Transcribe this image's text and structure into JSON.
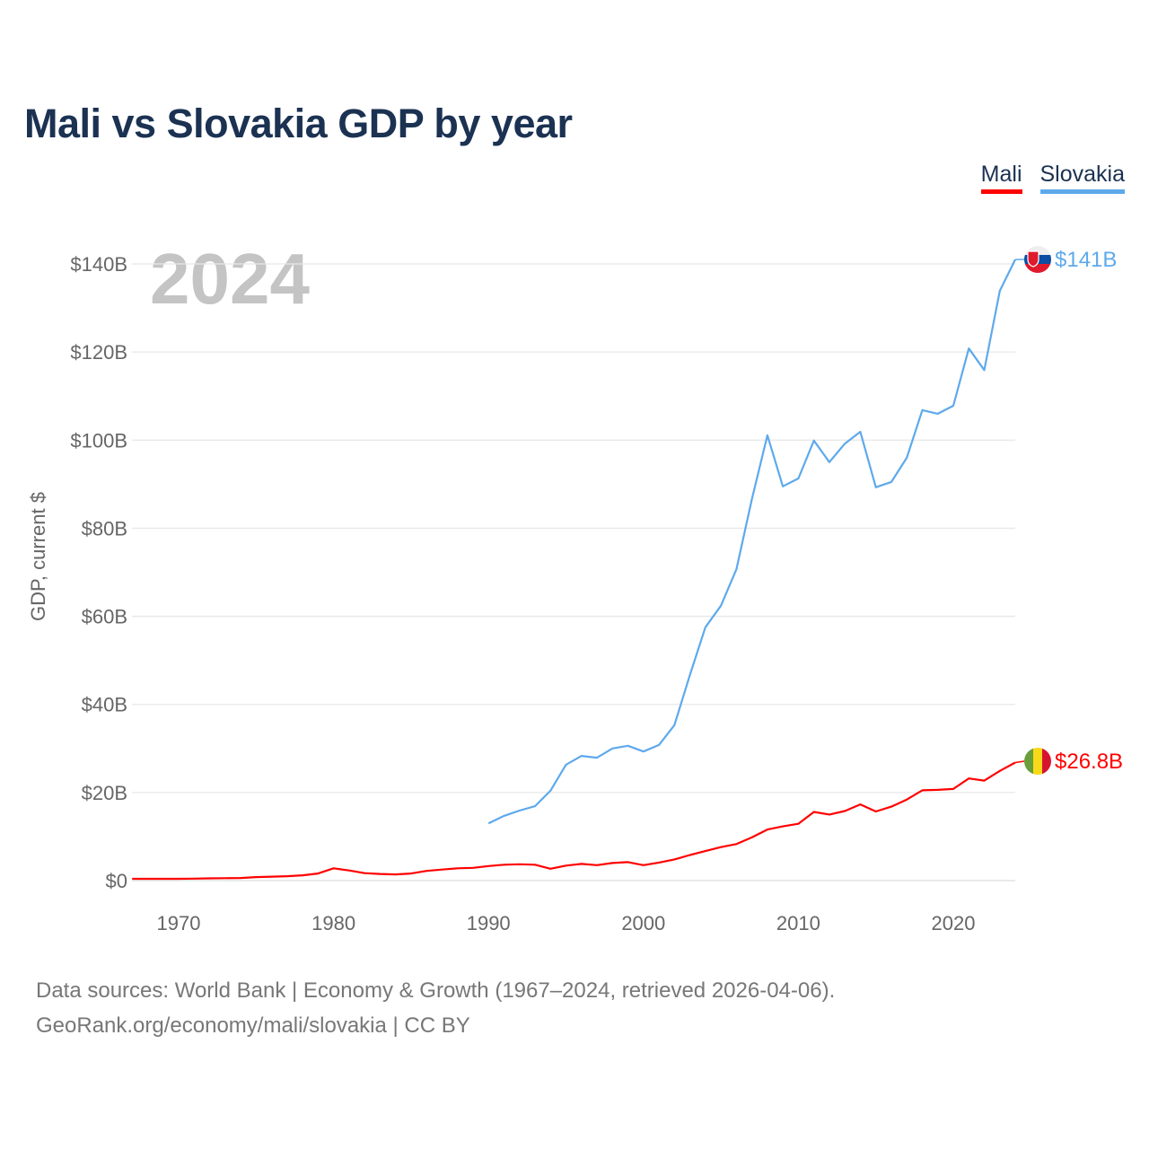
{
  "title": "Mali vs Slovakia GDP by year",
  "legend": [
    {
      "label": "Mali",
      "color": "#ff0000"
    },
    {
      "label": "Slovakia",
      "color": "#5ea9ec"
    }
  ],
  "year_label": "2024",
  "source_line1": "Data sources: World Bank | Economy & Growth (1967–2024, retrieved 2026-04-06).",
  "source_line2": "GeoRank.org/economy/mali/slovakia | CC BY",
  "chart_data": {
    "type": "line",
    "title": "Mali vs Slovakia GDP by year",
    "xlabel": "",
    "ylabel": "GDP, current $",
    "xlim": [
      1967,
      2024
    ],
    "ylim": [
      0,
      140
    ],
    "x_ticks": [
      1970,
      1980,
      1990,
      2000,
      2010,
      2020
    ],
    "y_ticks": [
      0,
      20,
      40,
      60,
      80,
      100,
      120,
      140
    ],
    "y_tick_labels": [
      "$0",
      "$20B",
      "$40B",
      "$60B",
      "$80B",
      "$100B",
      "$120B",
      "$140B"
    ],
    "grid": true,
    "legend_position": "top-right",
    "series": [
      {
        "name": "Mali",
        "color": "#ff0000",
        "end_label": "$26.8B",
        "start_year": 1967,
        "values": [
          0.4,
          0.4,
          0.4,
          0.4,
          0.45,
          0.5,
          0.55,
          0.6,
          0.8,
          0.9,
          1.0,
          1.2,
          1.6,
          2.8,
          2.3,
          1.7,
          1.5,
          1.4,
          1.6,
          2.2,
          2.5,
          2.8,
          2.9,
          3.3,
          3.6,
          3.7,
          3.6,
          2.7,
          3.4,
          3.8,
          3.5,
          4.0,
          4.2,
          3.5,
          4.1,
          4.8,
          5.8,
          6.7,
          7.6,
          8.3,
          9.8,
          11.6,
          12.3,
          12.9,
          15.6,
          15.0,
          15.8,
          17.3,
          15.7,
          16.8,
          18.4,
          20.5,
          20.6,
          20.8,
          23.2,
          22.7,
          24.9,
          26.8
        ]
      },
      {
        "name": "Slovakia",
        "color": "#5ea9ec",
        "end_label": "$141B",
        "start_year": 1990,
        "values": [
          13.0,
          14.7,
          15.9,
          16.9,
          20.4,
          26.3,
          28.3,
          27.9,
          30.0,
          30.6,
          29.3,
          30.8,
          35.3,
          46.7,
          57.5,
          62.4,
          70.7,
          86.6,
          101.1,
          89.5,
          91.3,
          99.9,
          95.0,
          99.2,
          101.9,
          89.3,
          90.5,
          96.0,
          106.8,
          106.0,
          107.8,
          120.8,
          115.9,
          133.9,
          141.0
        ]
      }
    ]
  }
}
